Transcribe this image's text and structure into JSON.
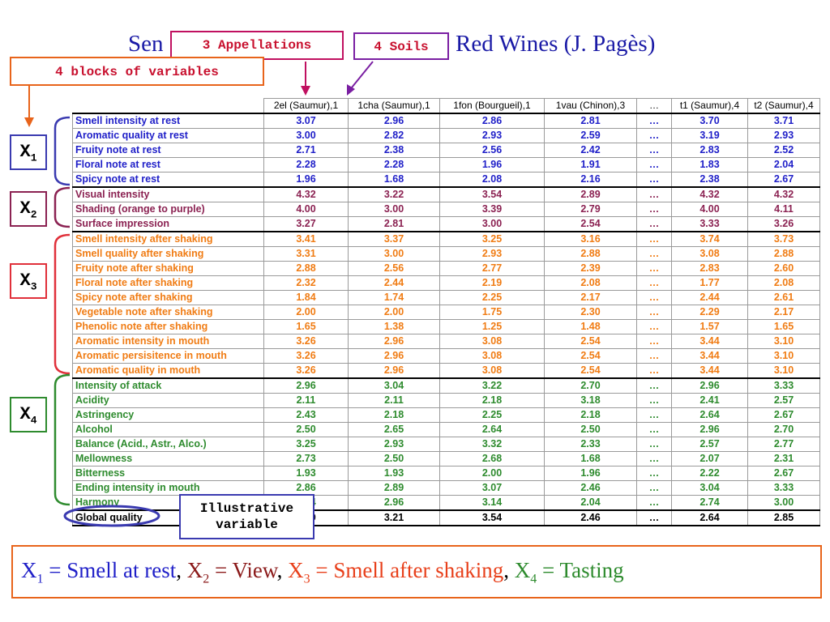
{
  "title": {
    "prefix": "Sen",
    "suffix": "Red Wines (J. Pagès)"
  },
  "callouts": {
    "appellations": "3 Appellations",
    "soils": "4 Soils",
    "blocks": "4 blocks of variables",
    "illustrative": [
      "Illustrative",
      "variable"
    ]
  },
  "block_labels": [
    {
      "letter": "X",
      "index": "1"
    },
    {
      "letter": "X",
      "index": "2"
    },
    {
      "letter": "X",
      "index": "3"
    },
    {
      "letter": "X",
      "index": "4"
    }
  ],
  "colors": {
    "block1": "#1f1fc8",
    "block2": "#8b2252",
    "block3": "#f07c14",
    "block4": "#2e8b2e"
  },
  "table": {
    "columns": [
      "",
      "2el (Saumur),1",
      "1cha (Saumur),1",
      "1fon (Bourgueil),1",
      "1vau (Chinon),3",
      "…",
      "t1 (Saumur),4",
      "t2 (Saumur),4"
    ],
    "rows": [
      {
        "block": 1,
        "label": "Smell intensity at rest",
        "values": [
          "3.07",
          "2.96",
          "2.86",
          "2.81",
          "…",
          "3.70",
          "3.71"
        ]
      },
      {
        "block": 1,
        "label": "Aromatic quality at rest",
        "values": [
          "3.00",
          "2.82",
          "2.93",
          "2.59",
          "…",
          "3.19",
          "2.93"
        ]
      },
      {
        "block": 1,
        "label": "Fruity note at rest",
        "values": [
          "2.71",
          "2.38",
          "2.56",
          "2.42",
          "…",
          "2.83",
          "2.52"
        ]
      },
      {
        "block": 1,
        "label": "Floral note at rest",
        "values": [
          "2.28",
          "2.28",
          "1.96",
          "1.91",
          "…",
          "1.83",
          "2.04"
        ]
      },
      {
        "block": 1,
        "label": "Spicy note at rest",
        "values": [
          "1.96",
          "1.68",
          "2.08",
          "2.16",
          "…",
          "2.38",
          "2.67"
        ]
      },
      {
        "block": 2,
        "label": "Visual intensity",
        "values": [
          "4.32",
          "3.22",
          "3.54",
          "2.89",
          "…",
          "4.32",
          "4.32"
        ]
      },
      {
        "block": 2,
        "label": "Shading (orange to purple)",
        "values": [
          "4.00",
          "3.00",
          "3.39",
          "2.79",
          "…",
          "4.00",
          "4.11"
        ]
      },
      {
        "block": 2,
        "label": "Surface impression",
        "values": [
          "3.27",
          "2.81",
          "3.00",
          "2.54",
          "…",
          "3.33",
          "3.26"
        ]
      },
      {
        "block": 3,
        "label": "Smell intensity after shaking",
        "values": [
          "3.41",
          "3.37",
          "3.25",
          "3.16",
          "…",
          "3.74",
          "3.73"
        ]
      },
      {
        "block": 3,
        "label": "Smell quality after shaking",
        "values": [
          "3.31",
          "3.00",
          "2.93",
          "2.88",
          "…",
          "3.08",
          "2.88"
        ]
      },
      {
        "block": 3,
        "label": "Fruity note after shaking",
        "values": [
          "2.88",
          "2.56",
          "2.77",
          "2.39",
          "…",
          "2.83",
          "2.60"
        ]
      },
      {
        "block": 3,
        "label": "Floral note after shaking",
        "values": [
          "2.32",
          "2.44",
          "2.19",
          "2.08",
          "…",
          "1.77",
          "2.08"
        ]
      },
      {
        "block": 3,
        "label": "Spicy note after shaking",
        "values": [
          "1.84",
          "1.74",
          "2.25",
          "2.17",
          "…",
          "2.44",
          "2.61"
        ]
      },
      {
        "block": 3,
        "label": "Vegetable note after shaking",
        "values": [
          "2.00",
          "2.00",
          "1.75",
          "2.30",
          "…",
          "2.29",
          "2.17"
        ]
      },
      {
        "block": 3,
        "label": "Phenolic note after shaking",
        "values": [
          "1.65",
          "1.38",
          "1.25",
          "1.48",
          "…",
          "1.57",
          "1.65"
        ]
      },
      {
        "block": 3,
        "label": "Aromatic intensity in mouth",
        "values": [
          "3.26",
          "2.96",
          "3.08",
          "2.54",
          "…",
          "3.44",
          "3.10"
        ]
      },
      {
        "block": 3,
        "label": "Aromatic persisitence in mouth",
        "values": [
          "3.26",
          "2.96",
          "3.08",
          "2.54",
          "…",
          "3.44",
          "3.10"
        ]
      },
      {
        "block": 3,
        "label": "Aromatic quality in mouth",
        "values": [
          "3.26",
          "2.96",
          "3.08",
          "2.54",
          "…",
          "3.44",
          "3.10"
        ]
      },
      {
        "block": 4,
        "label": "Intensity of attack",
        "values": [
          "2.96",
          "3.04",
          "3.22",
          "2.70",
          "…",
          "2.96",
          "3.33"
        ]
      },
      {
        "block": 4,
        "label": "Acidity",
        "values": [
          "2.11",
          "2.11",
          "2.18",
          "3.18",
          "…",
          "2.41",
          "2.57"
        ]
      },
      {
        "block": 4,
        "label": "Astringency",
        "values": [
          "2.43",
          "2.18",
          "2.25",
          "2.18",
          "…",
          "2.64",
          "2.67"
        ]
      },
      {
        "block": 4,
        "label": "Alcohol",
        "values": [
          "2.50",
          "2.65",
          "2.64",
          "2.50",
          "…",
          "2.96",
          "2.70"
        ]
      },
      {
        "block": 4,
        "label": "Balance (Acid., Astr., Alco.)",
        "values": [
          "3.25",
          "2.93",
          "3.32",
          "2.33",
          "…",
          "2.57",
          "2.77"
        ]
      },
      {
        "block": 4,
        "label": "Mellowness",
        "values": [
          "2.73",
          "2.50",
          "2.68",
          "1.68",
          "…",
          "2.07",
          "2.31"
        ]
      },
      {
        "block": 4,
        "label": "Bitterness",
        "values": [
          "1.93",
          "1.93",
          "2.00",
          "1.96",
          "…",
          "2.22",
          "2.67"
        ]
      },
      {
        "block": 4,
        "label": "Ending intensity in mouth",
        "values": [
          "2.86",
          "2.89",
          "3.07",
          "2.46",
          "…",
          "3.04",
          "3.33"
        ]
      },
      {
        "block": 4,
        "label": "Harmony",
        "values": [
          "2.84",
          "2.96",
          "3.14",
          "2.04",
          "…",
          "2.74",
          "3.00"
        ]
      },
      {
        "block": 5,
        "label": "Global quality",
        "values": [
          "3.39",
          "3.21",
          "3.54",
          "2.46",
          "…",
          "2.64",
          "2.85"
        ]
      }
    ]
  },
  "legend": [
    {
      "letter": "X",
      "index": "1",
      "eq": " = ",
      "text": "Smell at rest"
    },
    {
      "letter": "X",
      "index": "2",
      "eq": " = ",
      "text": "View"
    },
    {
      "letter": "X",
      "index": "3",
      "eq": " = ",
      "text": "Smell after shaking"
    },
    {
      "letter": "X",
      "index": "4",
      "eq": " = ",
      "text": "Tasting"
    }
  ],
  "legend_separator": ",  "
}
